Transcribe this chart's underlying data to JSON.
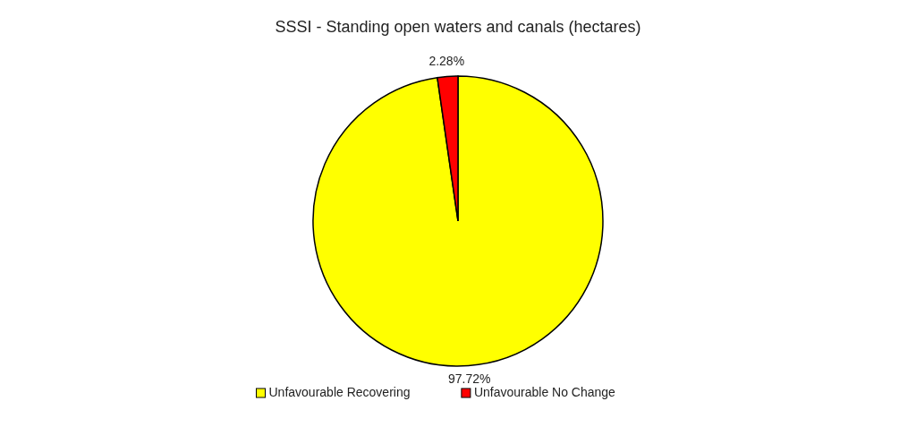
{
  "chart_data": {
    "type": "pie",
    "title": "SSSI - Standing open waters and canals (hectares)",
    "categories": [
      "Unfavourable Recovering",
      "Unfavourable No Change"
    ],
    "values": [
      97.72,
      2.28
    ],
    "colors": [
      "#ffff00",
      "#ff0000"
    ],
    "value_labels": [
      "97.72%",
      "2.28%"
    ],
    "legend": "bottom"
  }
}
